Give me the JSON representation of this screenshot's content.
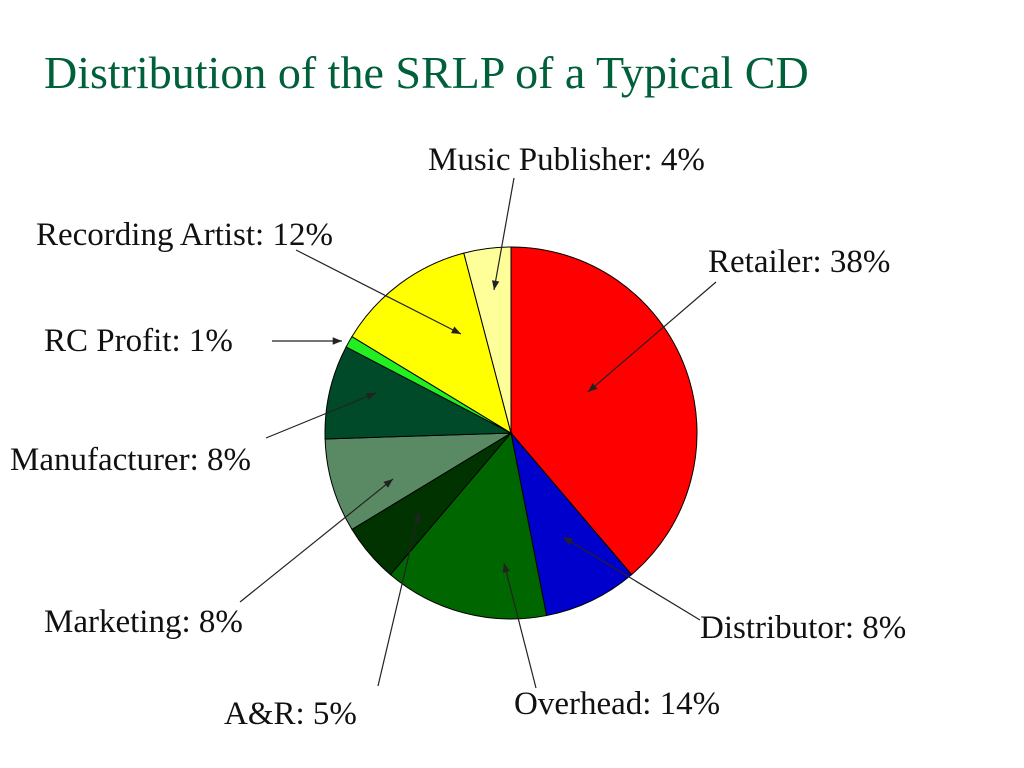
{
  "chart_data": {
    "type": "pie",
    "title": "Distribution of the SRLP of a Typical CD",
    "slices": [
      {
        "label": "Retailer: 38%",
        "name": "Retailer",
        "value": 38,
        "color": "#ff0000"
      },
      {
        "label": "Distributor: 8%",
        "name": "Distributor",
        "value": 8,
        "color": "#0000cc"
      },
      {
        "label": "Overhead: 14%",
        "name": "Overhead",
        "value": 14,
        "color": "#006600"
      },
      {
        "label": "A&R: 5%",
        "name": "A&R",
        "value": 5,
        "color": "#003300"
      },
      {
        "label": "Marketing: 8%",
        "name": "Marketing",
        "value": 8,
        "color": "#5a8a64"
      },
      {
        "label": "Manufacturer: 8%",
        "name": "Manufacturer",
        "value": 8,
        "color": "#004a2a"
      },
      {
        "label": "RC Profit: 1%",
        "name": "RC Profit",
        "value": 1,
        "color": "#22ee22"
      },
      {
        "label": "Recording Artist: 12%",
        "name": "Recording Artist",
        "value": 12,
        "color": "#ffff00"
      },
      {
        "label": "Music Publisher: 4%",
        "name": "Music Publisher",
        "value": 4,
        "color": "#ffff99"
      }
    ]
  }
}
